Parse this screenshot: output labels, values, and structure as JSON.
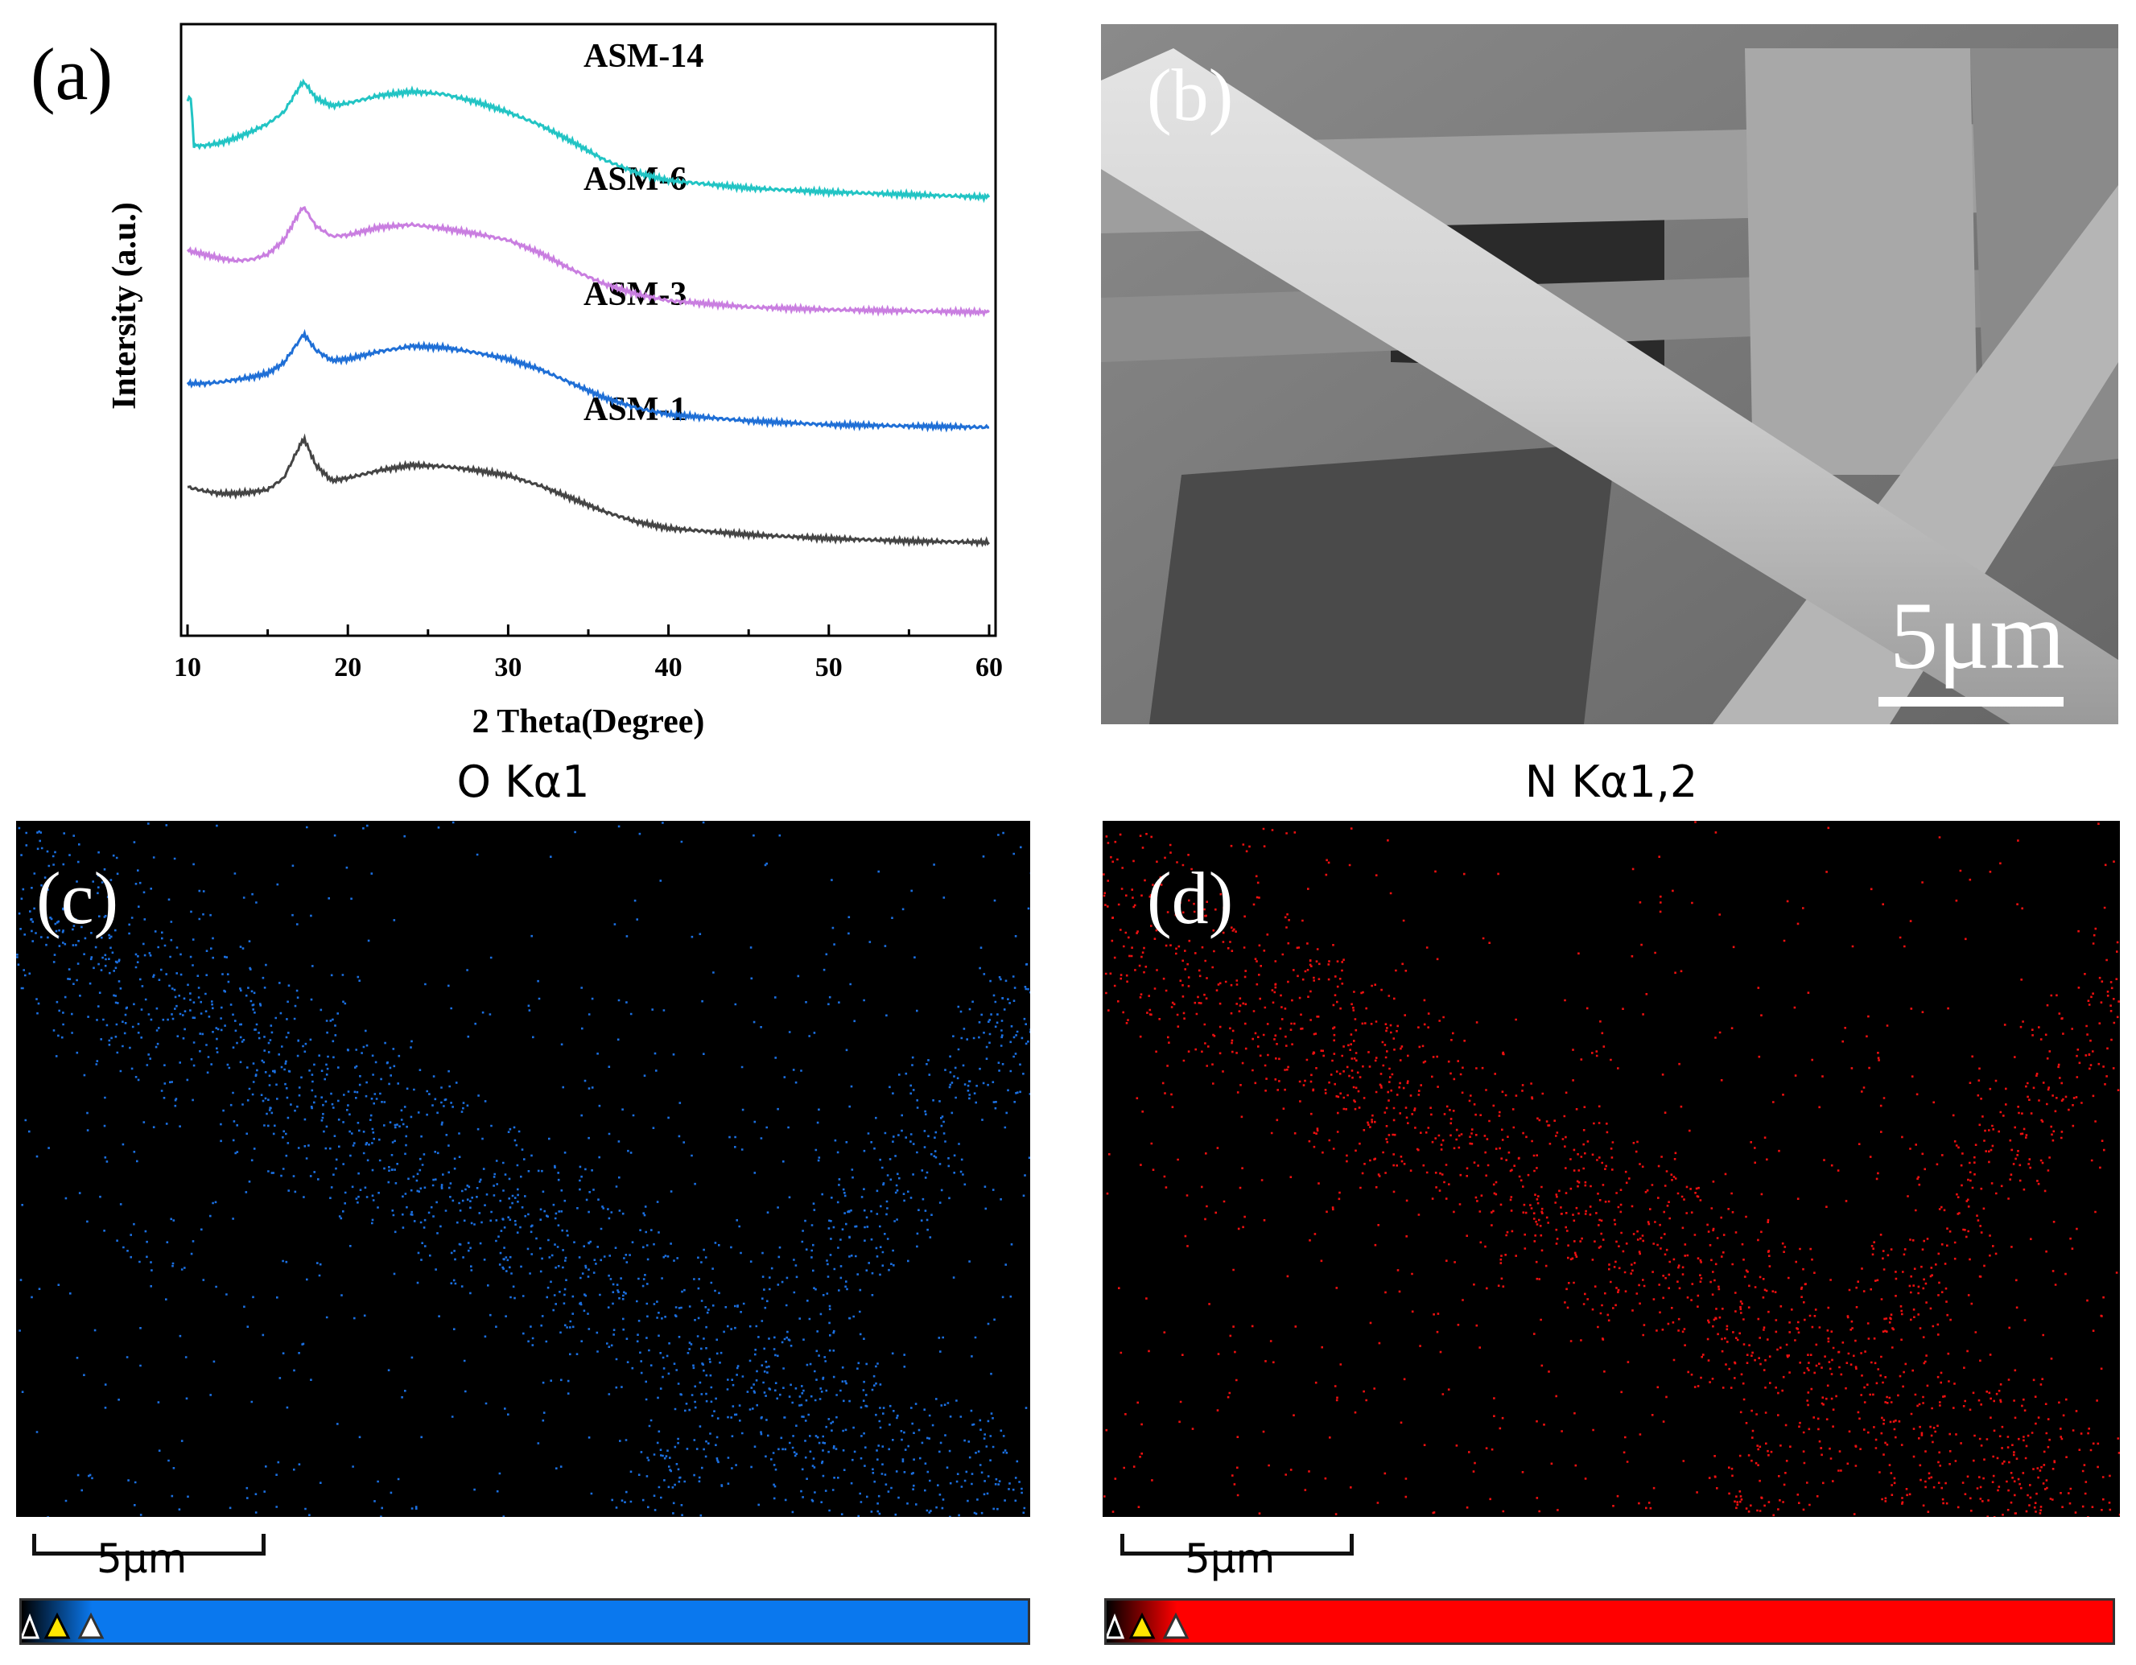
{
  "panels": {
    "a": {
      "label": "(a)",
      "chart_data": {
        "type": "line",
        "title": "",
        "xlabel": "2 Theta(Degree)",
        "ylabel": "Intersity (a.u.)",
        "xlim": [
          10,
          60
        ],
        "xticks": [
          10,
          20,
          30,
          40,
          50,
          60
        ],
        "xtick_labels": [
          "10",
          "20",
          "30",
          "40",
          "50",
          "60"
        ],
        "grid": false,
        "series": [
          {
            "name": "ASM-1",
            "color": "#444444",
            "offset": 0,
            "x": [
              10,
              11,
              12,
              13,
              14,
              15,
              16,
              17,
              17.3,
              18,
              19,
              20,
              22,
              24,
              26,
              28,
              30,
              32,
              34,
              36,
              38,
              40,
              45,
              50,
              55,
              60
            ],
            "y": [
              5.3,
              5.0,
              4.8,
              4.8,
              4.9,
              5.1,
              6.0,
              8.5,
              9.0,
              7.0,
              5.8,
              6.0,
              6.6,
              7.0,
              6.9,
              6.6,
              6.2,
              5.4,
              4.4,
              3.4,
              2.6,
              2.1,
              1.6,
              1.3,
              1.1,
              1.0
            ]
          },
          {
            "name": "ASM-3",
            "color": "#1f6fd6",
            "offset": 1,
            "x": [
              10,
              11,
              12,
              13,
              14,
              15,
              16,
              17,
              17.3,
              18,
              19,
              20,
              22,
              24,
              26,
              28,
              30,
              32,
              34,
              36,
              38,
              40,
              45,
              50,
              55,
              60
            ],
            "y": [
              4.4,
              4.4,
              4.5,
              4.7,
              4.9,
              5.2,
              6.0,
              7.8,
              8.2,
              7.0,
              6.2,
              6.3,
              6.9,
              7.3,
              7.2,
              6.8,
              6.3,
              5.5,
              4.4,
              3.3,
              2.5,
              2.0,
              1.5,
              1.2,
              1.1,
              1.0
            ]
          },
          {
            "name": "ASM-6",
            "color": "#c97ee0",
            "offset": 2,
            "x": [
              10,
              11,
              12,
              13,
              14,
              15,
              16,
              17,
              17.3,
              18,
              19,
              20,
              22,
              24,
              26,
              28,
              30,
              32,
              34,
              36,
              38,
              40,
              45,
              50,
              55,
              60
            ],
            "y": [
              5.8,
              5.5,
              5.2,
              5.0,
              5.1,
              5.5,
              6.6,
              8.8,
              9.1,
              7.7,
              6.9,
              7.0,
              7.6,
              7.8,
              7.5,
              7.1,
              6.6,
              5.6,
              4.3,
              3.2,
              2.4,
              1.9,
              1.4,
              1.2,
              1.1,
              1.0
            ]
          },
          {
            "name": "ASM-14",
            "color": "#22c4c4",
            "offset": 3,
            "x": [
              10,
              10.2,
              10.4,
              11,
              12,
              13,
              14,
              15,
              16,
              17,
              17.3,
              18,
              19,
              20,
              22,
              24,
              26,
              28,
              30,
              32,
              34,
              36,
              38,
              40,
              45,
              50,
              55,
              60
            ],
            "y": [
              8.5,
              8.8,
              5.0,
              5.0,
              5.2,
              5.6,
              6.1,
              6.7,
              7.6,
              9.6,
              9.9,
              8.7,
              8.1,
              8.3,
              8.9,
              9.2,
              9.0,
              8.4,
              7.6,
              6.6,
              5.3,
              3.9,
              2.9,
              2.3,
              1.7,
              1.4,
              1.2,
              1.0
            ]
          }
        ]
      }
    },
    "b": {
      "label": "(b)",
      "scale_text": "5μm"
    },
    "c": {
      "label": "(c)",
      "title": "O Kα1",
      "scale_text": "5μm",
      "color": "#1b6fe0",
      "bar_color": "#0a78ee"
    },
    "d": {
      "label": "(d)",
      "title": "N Kα1,2",
      "scale_text": "5μm",
      "color": "#ee1010",
      "bar_color": "#ff0000"
    }
  }
}
